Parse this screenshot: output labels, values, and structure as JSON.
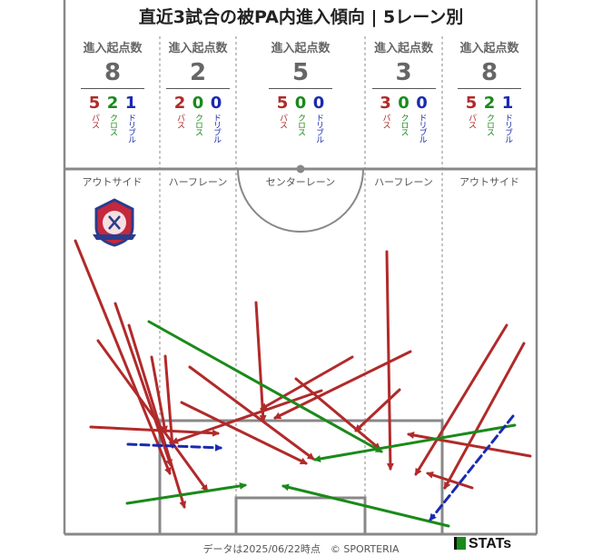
{
  "title": "直近3試合の被PA内進入傾向 | 5レーン別",
  "lanes": [
    {
      "header": "進入起点数",
      "total": "8",
      "pass": "5",
      "cross": "2",
      "dribble": "1",
      "zone": "アウトサイド"
    },
    {
      "header": "進入起点数",
      "total": "2",
      "pass": "2",
      "cross": "0",
      "dribble": "0",
      "zone": "ハーフレーン"
    },
    {
      "header": "進入起点数",
      "total": "5",
      "pass": "5",
      "cross": "0",
      "dribble": "0",
      "zone": "センターレーン"
    },
    {
      "header": "進入起点数",
      "total": "3",
      "pass": "3",
      "cross": "0",
      "dribble": "0",
      "zone": "ハーフレーン"
    },
    {
      "header": "進入起点数",
      "total": "8",
      "pass": "5",
      "cross": "2",
      "dribble": "1",
      "zone": "アウトサイド"
    }
  ],
  "type_labels": {
    "pass": "パス",
    "cross": "クロス",
    "dribble": "ドリブル"
  },
  "colors": {
    "pass": "#b12a2a",
    "cross": "#1a8a1a",
    "dribble": "#1a2ab0",
    "lines": "#888888"
  },
  "footer": "データは2025/06/22時点　© SPORTERIA",
  "logo_text": "STATs"
}
